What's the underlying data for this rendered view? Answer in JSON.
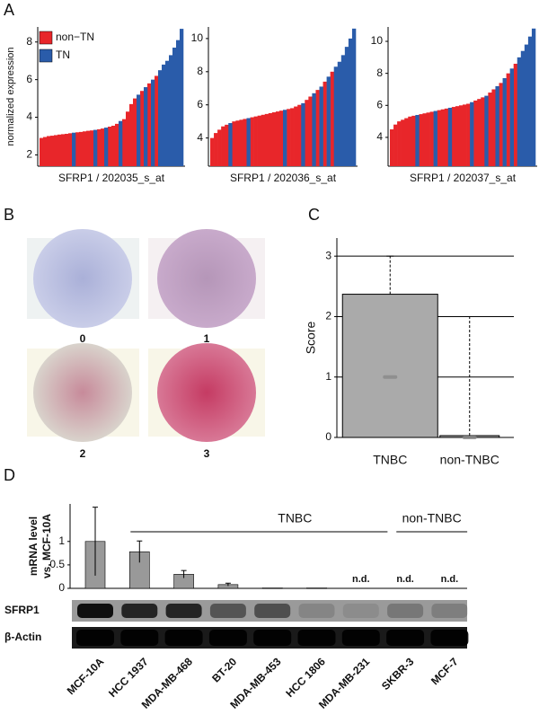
{
  "panel_labels": [
    "A",
    "B",
    "C",
    "D"
  ],
  "ihc_scores": [
    "0",
    "1",
    "2",
    "3"
  ],
  "blot_rows": [
    "SFRP1",
    "β-Actin"
  ],
  "chart_data": [
    {
      "type": "bar",
      "ylabel": "normalized expression",
      "xlabel": "SFRP1 / 202035_s_at",
      "legend": "upper left",
      "ylim": [
        1.4,
        8.8
      ],
      "yticks": [
        2,
        4,
        6,
        8
      ],
      "series": [
        {
          "name": "non−TN",
          "color": "#e8262a",
          "values": [
            2.9,
            2.95,
            3.0,
            3.02,
            3.05,
            3.08,
            3.1,
            3.12,
            3.15,
            null,
            3.2,
            3.22,
            3.25,
            3.28,
            3.3,
            null,
            3.36,
            3.4,
            null,
            3.5,
            3.55,
            3.65,
            null,
            3.9,
            4.3,
            4.7,
            5.0,
            null,
            5.4,
            null,
            5.8,
            null,
            6.2,
            null,
            null,
            null,
            null,
            null,
            null,
            null
          ]
        },
        {
          "name": "TN",
          "color": "#2a5caa",
          "values": [
            null,
            null,
            null,
            null,
            null,
            null,
            null,
            null,
            null,
            3.18,
            null,
            null,
            null,
            null,
            null,
            3.33,
            null,
            null,
            3.45,
            null,
            null,
            null,
            3.8,
            null,
            null,
            null,
            null,
            5.2,
            null,
            5.6,
            null,
            6.0,
            null,
            6.5,
            6.8,
            7.0,
            7.3,
            7.7,
            8.1,
            8.7
          ]
        }
      ]
    },
    {
      "type": "bar",
      "xlabel": "SFRP1 / 202036_s_at",
      "ylim": [
        2.3,
        10.7
      ],
      "yticks": [
        4,
        6,
        8,
        10
      ],
      "series": [
        {
          "color": "#e8262a",
          "values": [
            4.0,
            4.3,
            4.5,
            4.7,
            4.8,
            null,
            5.0,
            5.05,
            5.1,
            5.15,
            null,
            5.25,
            5.3,
            5.35,
            5.4,
            5.45,
            5.5,
            5.55,
            5.6,
            5.65,
            null,
            5.75,
            5.8,
            5.9,
            6.0,
            null,
            6.3,
            6.5,
            null,
            6.9,
            null,
            7.4,
            null,
            8.0,
            null,
            null,
            null,
            null,
            null,
            null
          ]
        },
        {
          "color": "#2a5caa",
          "values": [
            null,
            null,
            null,
            null,
            null,
            4.9,
            null,
            null,
            null,
            null,
            5.2,
            null,
            null,
            null,
            null,
            null,
            null,
            null,
            null,
            null,
            5.7,
            null,
            null,
            null,
            null,
            6.1,
            null,
            null,
            6.7,
            null,
            7.1,
            null,
            7.7,
            null,
            8.3,
            8.6,
            9.0,
            9.5,
            10.0,
            10.6
          ]
        }
      ]
    },
    {
      "type": "bar",
      "xlabel": "SFRP1 / 202037_s_at",
      "ylim": [
        2.2,
        10.9
      ],
      "yticks": [
        4,
        6,
        8,
        10
      ],
      "series": [
        {
          "color": "#e8262a",
          "values": [
            4.5,
            4.8,
            5.0,
            5.1,
            5.2,
            5.3,
            5.35,
            null,
            5.45,
            5.5,
            5.55,
            5.6,
            null,
            5.7,
            5.75,
            5.8,
            null,
            5.9,
            5.95,
            6.0,
            6.05,
            6.1,
            null,
            6.3,
            6.4,
            6.5,
            null,
            6.8,
            7.0,
            null,
            7.4,
            null,
            8.0,
            null,
            8.6,
            null,
            null,
            null,
            null,
            null
          ]
        },
        {
          "color": "#2a5caa",
          "values": [
            null,
            null,
            null,
            null,
            null,
            null,
            null,
            5.4,
            null,
            null,
            null,
            null,
            5.65,
            null,
            null,
            null,
            5.85,
            null,
            null,
            null,
            null,
            null,
            6.2,
            null,
            null,
            null,
            6.6,
            null,
            null,
            7.2,
            null,
            7.7,
            null,
            8.3,
            null,
            9.0,
            9.4,
            9.8,
            10.3,
            10.8
          ]
        }
      ]
    },
    {
      "type": "box",
      "ylabel": "Score",
      "grid": true,
      "color": "#aaaaaa",
      "ylim": [
        0,
        3.3
      ],
      "yticks": [
        0,
        1,
        2,
        3
      ],
      "categories": [
        "TNBC",
        "non-TNBC"
      ],
      "whisker_low": [
        0,
        0
      ],
      "q1": [
        0,
        0
      ],
      "median": [
        1,
        0
      ],
      "q3": [
        2.37,
        0.03
      ],
      "whisker_high": [
        3,
        2
      ]
    },
    {
      "type": "bar",
      "ylabel": [
        "mRNA level",
        "vs. MCF-10A"
      ],
      "color": "#999999",
      "ylim": [
        0,
        1.8
      ],
      "yticks": [
        0,
        0.5,
        1
      ],
      "categories": [
        "MCF-10A",
        "HCC 1937",
        "MDA-MB-468",
        "BT-20",
        "MDA-MB-453",
        "HCC 1806",
        "MDA-MB-231",
        "SKBR-3",
        "MCF-7"
      ],
      "values": [
        1.0,
        0.78,
        0.3,
        0.08,
        0.01,
        0.01,
        null,
        null,
        null
      ],
      "errors": [
        0.73,
        0.23,
        0.08,
        0.03,
        null,
        null,
        null,
        null,
        null
      ],
      "value_labels": [
        null,
        null,
        null,
        null,
        null,
        null,
        "n.d.",
        "n.d.",
        "n.d."
      ],
      "annotations": [
        "TNBC",
        "non-TNBC"
      ]
    }
  ]
}
